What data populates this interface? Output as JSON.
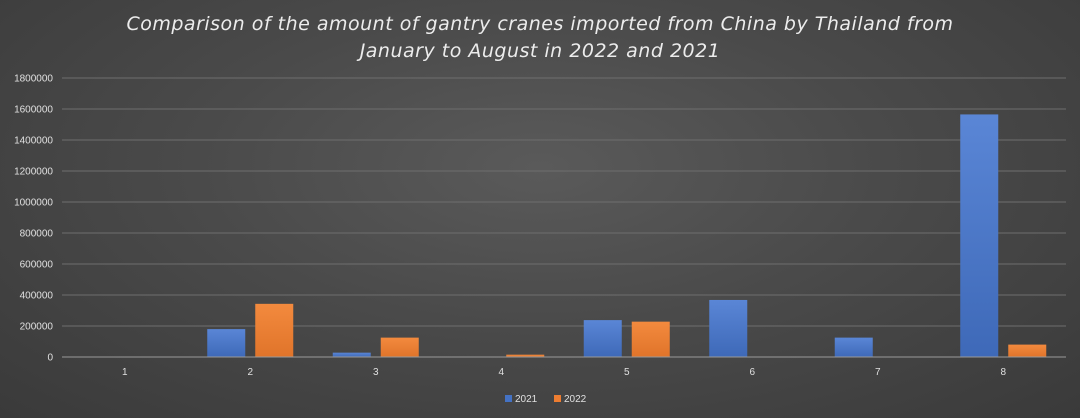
{
  "chart_data": {
    "type": "bar",
    "title_lines": [
      "Comparison of the amount of gantry cranes imported from China by Thailand from",
      "January to August in 2022 and 2021"
    ],
    "categories": [
      "1",
      "2",
      "3",
      "4",
      "5",
      "6",
      "7",
      "8"
    ],
    "series": [
      {
        "name": "2021",
        "color": "#4472c4",
        "values": [
          0,
          180000,
          28000,
          0,
          238000,
          368000,
          125000,
          1565000
        ]
      },
      {
        "name": "2022",
        "color": "#ed7d31",
        "values": [
          0,
          343000,
          125000,
          15000,
          228000,
          0,
          0,
          80000
        ]
      }
    ],
    "yticks": [
      "0",
      "200000",
      "400000",
      "600000",
      "800000",
      "1000000",
      "1200000",
      "1400000",
      "1600000",
      "1800000"
    ],
    "ylim": [
      0,
      1800000
    ],
    "grid": true,
    "legend_position": "bottom-center"
  }
}
